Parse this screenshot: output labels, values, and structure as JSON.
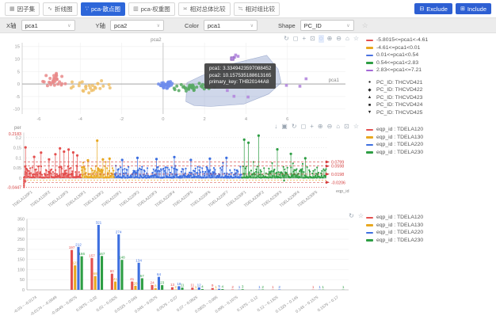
{
  "toolbar": {
    "tabs": [
      {
        "id": "factor-set",
        "label": "因子集",
        "icon": "grid-icon",
        "glyph": "▦",
        "active": false
      },
      {
        "id": "line-chart",
        "label": "折线图",
        "icon": "line-chart-icon",
        "glyph": "∿",
        "active": false
      },
      {
        "id": "pca-scatter",
        "label": "pca-散点图",
        "icon": "scatter-chart-icon",
        "glyph": "∵",
        "active": true
      },
      {
        "id": "pca-weight",
        "label": "pca-权重图",
        "icon": "weight-chart-icon",
        "glyph": "▥",
        "active": false
      },
      {
        "id": "relative-overall",
        "label": "相对总体比较",
        "icon": "compare-overall-icon",
        "glyph": "≍",
        "active": false
      },
      {
        "id": "relative-group",
        "label": "相对组比较",
        "icon": "compare-group-icon",
        "glyph": "≒",
        "active": false
      }
    ],
    "exclude_label": "Exclude",
    "include_label": "Include"
  },
  "controls": {
    "x_axis_label": "X轴",
    "x_axis_value": "pca1",
    "y_axis_label": "Y轴",
    "y_axis_value": "pca2",
    "color_label": "Color",
    "color_value": "pca1",
    "shape_label": "Shape",
    "shape_value": "PC_ID"
  },
  "colors": {
    "accent": "#2d66d9",
    "series_red": "#e4504f",
    "series_yellow": "#e8a820",
    "series_blue": "#3d6fe0",
    "series_green": "#2e9e44",
    "series_purple": "#a469d6",
    "tooltip_bg": "#464646",
    "threshold_red": "#d43c3c"
  },
  "chart_data": [
    {
      "id": "pca_scatter",
      "type": "scatter",
      "xlabel": "pca1",
      "ylabel": "pca2",
      "xlim": [
        -6.8,
        8.8
      ],
      "ylim": [
        -12,
        16.5
      ],
      "xticks": [
        -6,
        -4,
        -2,
        0,
        2,
        4,
        6
      ],
      "yticks": [
        -10,
        -5,
        0,
        5,
        10,
        15
      ],
      "clusters": [
        {
          "name": "-5.8015<=pca1<-4.61",
          "color": "#e98a89",
          "n": 30,
          "cx": -5.3,
          "cy": 1.7,
          "sx": 0.55,
          "sy": 1.9,
          "shape": "circle"
        },
        {
          "name": "-4.61<=pca1<0.01",
          "color": "#eec06a",
          "n": 26,
          "cx": -3.5,
          "cy": -1.1,
          "sx": 0.65,
          "sy": 1.7,
          "shape": "circle"
        },
        {
          "name": "0.01<=pca1<0.54",
          "color": "#6d8cec",
          "n": 30,
          "cx": 0.2,
          "cy": -0.3,
          "sx": 0.3,
          "sy": 1.1,
          "shape": "circle"
        },
        {
          "name": "0.54<=pca1<2.83",
          "color": "#57a963",
          "n": 34,
          "cx": 1.6,
          "cy": -1.0,
          "sx": 0.75,
          "sy": 1.2,
          "shape": "circle"
        }
      ],
      "points_extra": {
        "name": "2.83<=pca1<=7.21",
        "color": "#b387dd",
        "shape": "square",
        "pts": [
          [
            3.5,
            11.6
          ],
          [
            3.62,
            11.1
          ],
          [
            3.45,
            10.7
          ],
          [
            2.95,
            5.6
          ],
          [
            3.08,
            5.2
          ],
          [
            4.35,
            2.4
          ],
          [
            6.9,
            2.1
          ],
          [
            4.6,
            0.3
          ],
          [
            5.2,
            -0.8
          ],
          [
            5.95,
            -0.55
          ],
          [
            6.6,
            -0.9
          ],
          [
            3.1,
            -2.6
          ],
          [
            3.42,
            -4.9
          ],
          [
            4.1,
            -5.2
          ],
          [
            2.88,
            -0.2
          ]
        ]
      },
      "selection_polygon": [
        [
          1.1,
          -7
        ],
        [
          1.15,
          0.5
        ],
        [
          1.9,
          3.5
        ],
        [
          3.4,
          8.2
        ],
        [
          5.0,
          11.5
        ],
        [
          5.55,
          6.0
        ],
        [
          5.7,
          0.5
        ],
        [
          5.1,
          -4.0
        ],
        [
          3.9,
          -8.0
        ],
        [
          2.3,
          -9.0
        ],
        [
          1.5,
          -8.6
        ]
      ],
      "highlight_point": [
        3.3349423597088452,
        10.157535188613165
      ],
      "tooltip": {
        "rows": [
          "pca1:  3.3349423597088452",
          "pca2:  10.157535188613165",
          "primary_key:  THB20144A8"
        ]
      },
      "legend_bins": [
        {
          "label": "-5.8015<=pca1<-4.61",
          "color": "#e4504f"
        },
        {
          "label": "-4.61<=pca1<0.01",
          "color": "#e8a820"
        },
        {
          "label": "0.01<=pca1<0.54",
          "color": "#4a71e0"
        },
        {
          "label": "0.54<=pca1<2.83",
          "color": "#2e9e44"
        },
        {
          "label": "2.83<=pca1<=7.21",
          "color": "#a469d6"
        }
      ],
      "legend_shapes": [
        {
          "label": "PC_ID: THCVD421",
          "glyph": "●"
        },
        {
          "label": "PC_ID: THCVD422",
          "glyph": "◆"
        },
        {
          "label": "PC_ID: THCVD423",
          "glyph": "▲"
        },
        {
          "label": "PC_ID: THCVD424",
          "glyph": "■"
        },
        {
          "label": "PC_ID: THCVD425",
          "glyph": "▼"
        }
      ],
      "modebar": [
        {
          "name": "refresh-icon",
          "glyph": "↻"
        },
        {
          "name": "zoom-icon",
          "glyph": "◻"
        },
        {
          "name": "pan-icon",
          "glyph": "+"
        },
        {
          "name": "box-select-icon",
          "glyph": "⊡"
        },
        {
          "name": "lasso-select-icon",
          "glyph": "◌",
          "active": true
        },
        {
          "name": "zoom-in-icon",
          "glyph": "⊕"
        },
        {
          "name": "zoom-out-icon",
          "glyph": "⊖"
        },
        {
          "name": "home-icon",
          "glyph": "⌂"
        },
        {
          "name": "star-icon",
          "glyph": "☆"
        }
      ],
      "seed": 11
    },
    {
      "id": "per_lollipop",
      "type": "lollipop",
      "ylabel": "per",
      "xlabel": "eqp_id",
      "ylim": [
        -0.055,
        0.228
      ],
      "yticks": [
        0,
        0.05,
        0.1,
        0.15,
        0.2
      ],
      "ymax_label": "0.2183",
      "ymin_label": "-0.0447",
      "groups": [
        {
          "name": "eqp_id : TDELA120",
          "color": "#e4504f",
          "span": [
            0,
            0.19
          ],
          "n": 120,
          "base": [
            0.002,
            0.062
          ],
          "peaks": [
            [
              0.03,
              0.152
            ],
            [
              0.18,
              0.105
            ],
            [
              0.3,
              0.126
            ],
            [
              0.44,
              0.092
            ],
            [
              0.55,
              0.118
            ],
            [
              0.63,
              0.147
            ],
            [
              0.7,
              0.131
            ],
            [
              0.78,
              0.141
            ],
            [
              0.86,
              0.127
            ],
            [
              0.93,
              0.112
            ]
          ],
          "negatives": [
            [
              0.004,
              -0.0447
            ],
            [
              0.004,
              -0.036
            ],
            [
              0.004,
              -0.027
            ],
            [
              0.004,
              -0.018
            ],
            [
              0.004,
              -0.009
            ],
            [
              0.03,
              -0.015
            ]
          ]
        },
        {
          "name": "eqp_id : TDELA130",
          "color": "#e8a820",
          "span": [
            0.19,
            0.3
          ],
          "n": 70,
          "base": [
            0.002,
            0.06
          ],
          "peaks": [
            [
              0.2,
              0.088
            ],
            [
              0.48,
              0.185
            ],
            [
              0.65,
              0.092
            ],
            [
              0.85,
              0.096
            ]
          ],
          "negatives": []
        },
        {
          "name": "eqp_id : TDELA220",
          "color": "#3d6fe0",
          "span": [
            0.3,
            0.72
          ],
          "n": 260,
          "base": [
            0.002,
            0.058
          ],
          "peaks": [
            [
              0.06,
              0.09
            ],
            [
              0.18,
              0.1
            ],
            [
              0.33,
              0.094
            ],
            [
              0.47,
              0.104
            ],
            [
              0.6,
              0.09
            ],
            [
              0.75,
              0.096
            ],
            [
              0.88,
              0.1
            ]
          ],
          "negatives": []
        },
        {
          "name": "eqp_id : TDELA230",
          "color": "#2e9e44",
          "span": [
            0.72,
            1.0
          ],
          "n": 170,
          "base": [
            0.002,
            0.06
          ],
          "peaks": [
            [
              0.03,
              0.19
            ],
            [
              0.08,
              0.175
            ],
            [
              0.2,
              0.21
            ],
            [
              0.42,
              0.142
            ],
            [
              0.58,
              0.12
            ],
            [
              0.75,
              0.098
            ]
          ],
          "negatives": [
            [
              0.5,
              -0.012
            ]
          ]
        }
      ],
      "thresholds": [
        {
          "value": 0.0799,
          "label": "0.0799"
        },
        {
          "value": 0.0598,
          "label": "0.0598"
        },
        {
          "value": 0.0198,
          "label": "0.0198"
        },
        {
          "value": -0.0206,
          "label": "-0.0206"
        }
      ],
      "aux_lines": [
        {
          "value": -0.009,
          "color": "#e8a820",
          "dash": "2,2"
        },
        {
          "value": -0.0447,
          "color": "#d43c3c",
          "dash": "1,2"
        }
      ],
      "xtick_labels": [
        "TDELA120F1",
        "TDELA120F2",
        "TDELA120F3",
        "TDELA130F1",
        "TDELA130F2",
        "TDELA220F1",
        "TDELA220F2",
        "TDELA220F3",
        "TDELA220F4",
        "TDELA220F5",
        "TDELA220F6",
        "TDELA220F7",
        "TDELA230F1",
        "TDELA230F2",
        "TDELA230F3",
        "TDELA230F4",
        "TDELA230F5"
      ],
      "legend": [
        {
          "label": "eqp_id : TDELA120",
          "color": "#e4504f"
        },
        {
          "label": "eqp_id : TDELA130",
          "color": "#e8a820"
        },
        {
          "label": "eqp_id : TDELA220",
          "color": "#3d6fe0"
        },
        {
          "label": "eqp_id : TDELA230",
          "color": "#2e9e44"
        }
      ],
      "modebar": [
        {
          "name": "download-icon",
          "glyph": "↓"
        },
        {
          "name": "image-icon",
          "glyph": "▣"
        },
        {
          "name": "refresh-icon",
          "glyph": "↻"
        },
        {
          "name": "zoom-icon",
          "glyph": "◻"
        },
        {
          "name": "pan-icon",
          "glyph": "+"
        },
        {
          "name": "zoom-in-icon",
          "glyph": "⊕"
        },
        {
          "name": "zoom-out-icon",
          "glyph": "⊖"
        },
        {
          "name": "home-icon",
          "glyph": "⌂"
        },
        {
          "name": "box-select-icon",
          "glyph": "⊡"
        },
        {
          "name": "star-icon",
          "glyph": "☆"
        }
      ],
      "seed": 23
    },
    {
      "id": "per_histogram",
      "type": "bar",
      "categories": [
        "-0.03 ~ -0.0174",
        "-0.0174 ~ -0.0049",
        "-0.0049 ~ 0.0075",
        "0.0075 ~ 0.02",
        "0.02 ~ 0.0325",
        "0.0325 ~ 0.045",
        "0.045 ~ 0.0575",
        "0.0575 ~ 0.07",
        "0.07 ~ 0.0825",
        "0.0825 ~ 0.095",
        "0.095 ~ 0.1075",
        "0.1075 ~ 0.12",
        "0.12 ~ 0.1325",
        "0.1325 ~ 0.145",
        "0.145 ~ 0.1575",
        "0.1575 ~ 0.17"
      ],
      "series": [
        {
          "name": "eqp_id : TDELA120",
          "color": "#e4504f",
          "values": [
            0,
            0,
            197,
            157,
            80,
            41,
            24,
            13,
            11,
            9,
            2,
            0,
            1,
            0,
            1,
            0
          ]
        },
        {
          "name": "eqp_id : TDELA130",
          "color": "#e8a820",
          "values": [
            0,
            0,
            121,
            68,
            41,
            20,
            8,
            2,
            1,
            1,
            0,
            0,
            0,
            0,
            0,
            0
          ]
        },
        {
          "name": "eqp_id : TDELA220",
          "color": "#3d6fe0",
          "values": [
            0,
            0,
            212,
            321,
            274,
            134,
            64,
            18,
            12,
            5,
            1,
            1,
            2,
            0,
            1,
            0
          ]
        },
        {
          "name": "eqp_id : TDELA230",
          "color": "#2e9e44",
          "values": [
            0,
            0,
            166,
            167,
            148,
            57,
            23,
            11,
            4,
            4,
            3,
            2,
            0,
            0,
            1,
            1
          ]
        }
      ],
      "yticks": [
        0,
        50,
        100,
        150,
        200,
        250,
        300,
        350
      ],
      "ylim": [
        0,
        360
      ],
      "legend": [
        {
          "label": "eqp_id : TDELA120",
          "color": "#e4504f"
        },
        {
          "label": "eqp_id : TDELA130",
          "color": "#e8a820"
        },
        {
          "label": "eqp_id : TDELA220",
          "color": "#3d6fe0"
        },
        {
          "label": "eqp_id : TDELA230",
          "color": "#2e9e44"
        }
      ],
      "modebar": [
        {
          "name": "refresh-icon",
          "glyph": "↻"
        },
        {
          "name": "star-icon",
          "glyph": "☆"
        }
      ]
    }
  ]
}
